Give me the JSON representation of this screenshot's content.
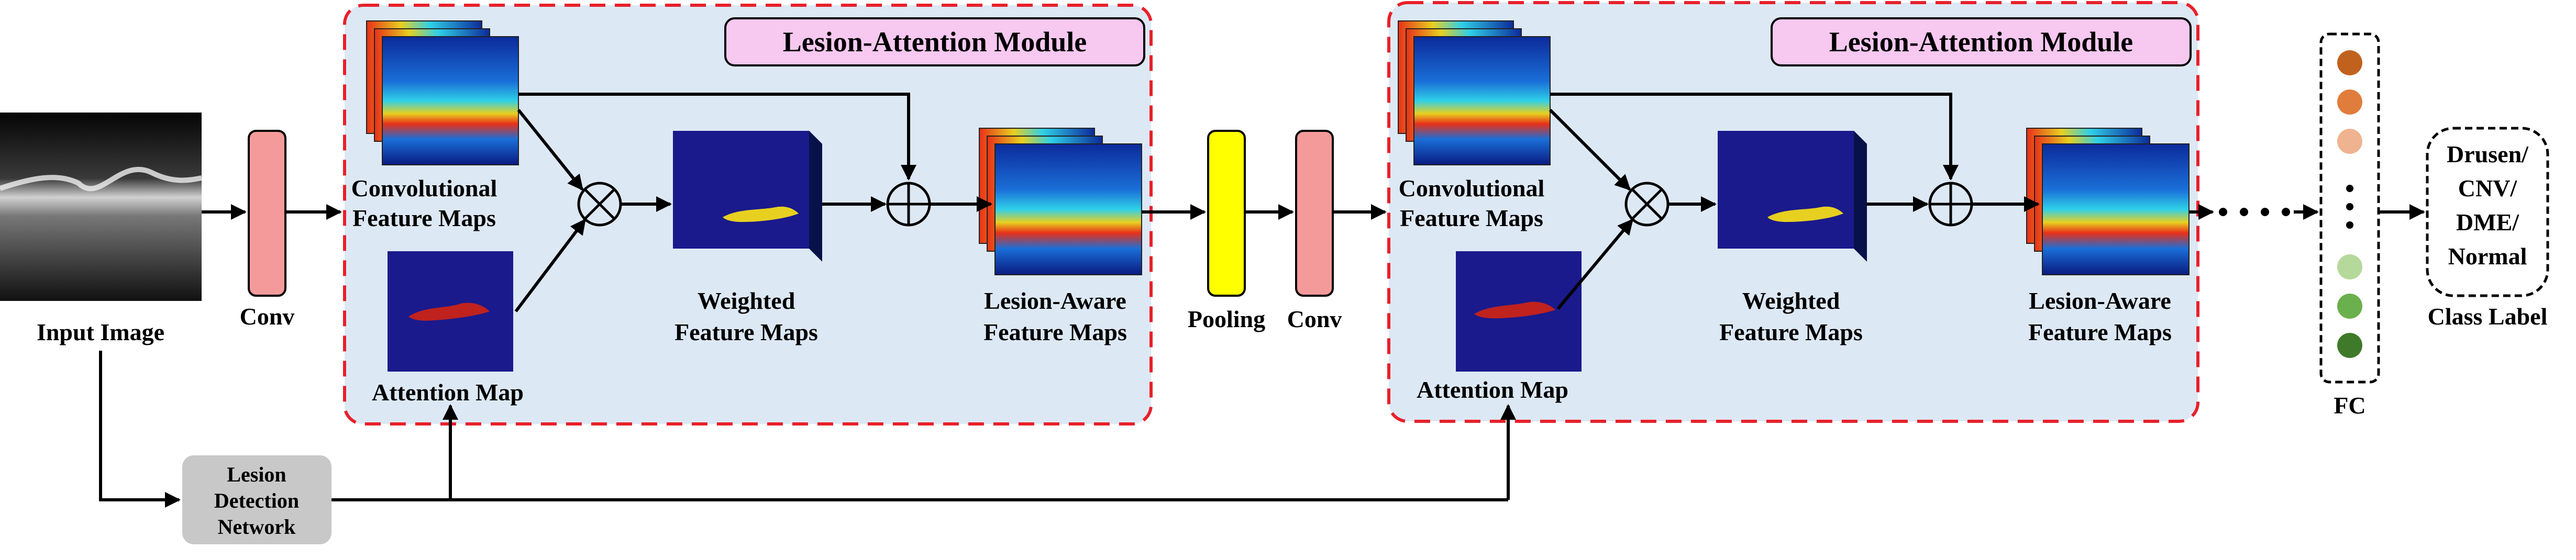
{
  "input": {
    "label": "Input Image"
  },
  "conv1": {
    "label": "Conv"
  },
  "module1": {
    "title": "Lesion-Attention Module",
    "conv_maps": [
      "Convolutional",
      "Feature Maps"
    ],
    "attention": "Attention Map",
    "weighted": [
      "Weighted",
      "Feature Maps"
    ],
    "aware": [
      "Lesion-Aware",
      "Feature Maps"
    ]
  },
  "pooling": {
    "label": "Pooling"
  },
  "conv2": {
    "label": "Conv"
  },
  "module2": {
    "title": "Lesion-Attention Module",
    "conv_maps": [
      "Convolutional",
      "Feature Maps"
    ],
    "attention": "Attention Map",
    "weighted": [
      "Weighted",
      "Feature Maps"
    ],
    "aware": [
      "Lesion-Aware",
      "Feature Maps"
    ]
  },
  "detection": {
    "label": [
      "Lesion",
      "Detection",
      "Network"
    ]
  },
  "fc": {
    "label": "FC",
    "node_colors": [
      "#c0611e",
      "#e07d3c",
      "#efb38f",
      "#b5d99b",
      "#6ab04c",
      "#3f7a2a"
    ]
  },
  "output": {
    "classes": [
      "Drusen/",
      "CNV/",
      "DME/",
      "Normal"
    ],
    "caption": "Class Label"
  },
  "colors": {
    "module_fill": "#dde8f5",
    "module_border": "#e8202a",
    "title_fill": "#f7c8f0",
    "conv_fill": "#f59a9a",
    "pool_fill": "#ffff00",
    "detection_fill": "#c8c8c8",
    "map_fill": "#1a1a8c"
  }
}
